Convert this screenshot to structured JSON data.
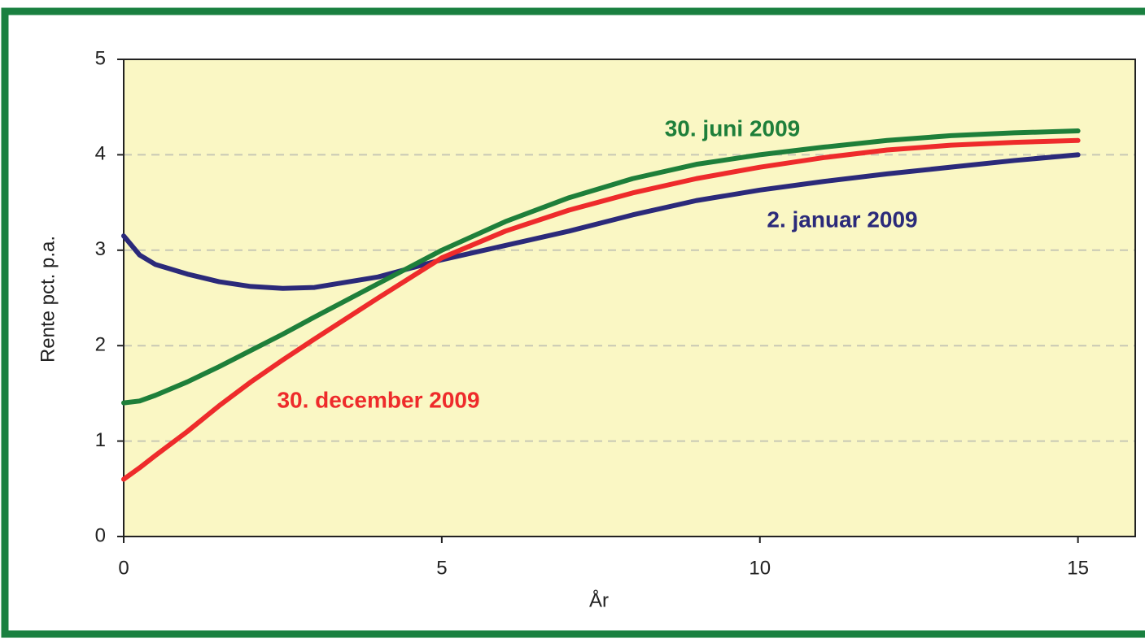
{
  "chart_data": {
    "type": "line",
    "x_label": "År",
    "y_label": "Rente pct. p.a.",
    "x": [
      0,
      0.25,
      0.5,
      1,
      1.5,
      2,
      2.5,
      3,
      4,
      5,
      6,
      7,
      8,
      9,
      10,
      11,
      12,
      13,
      14,
      15
    ],
    "series": [
      {
        "name": "2. januar 2009",
        "color": "#2b2a7a",
        "values": [
          3.15,
          2.95,
          2.85,
          2.75,
          2.67,
          2.62,
          2.6,
          2.61,
          2.72,
          2.9,
          3.05,
          3.2,
          3.37,
          3.52,
          3.63,
          3.72,
          3.8,
          3.87,
          3.94,
          4.0
        ]
      },
      {
        "name": "30. juni 2009",
        "color": "#1e7f3a",
        "values": [
          1.4,
          1.42,
          1.48,
          1.62,
          1.78,
          1.95,
          2.12,
          2.3,
          2.65,
          3.0,
          3.3,
          3.55,
          3.75,
          3.9,
          4.0,
          4.08,
          4.15,
          4.2,
          4.23,
          4.25
        ]
      },
      {
        "name": "30. december 2009",
        "color": "#ee2b2b",
        "values": [
          0.6,
          0.72,
          0.85,
          1.1,
          1.37,
          1.62,
          1.85,
          2.07,
          2.5,
          2.92,
          3.2,
          3.42,
          3.6,
          3.75,
          3.87,
          3.97,
          4.05,
          4.1,
          4.13,
          4.15
        ]
      }
    ],
    "xlim": [
      0,
      15.9
    ],
    "ylim": [
      0,
      5
    ],
    "xticks": [
      0,
      5,
      10,
      15
    ],
    "yticks": [
      0,
      1,
      2,
      3,
      4,
      5
    ],
    "grid": true,
    "plot_background": "#faf7c4",
    "frame_color": "#1a8040"
  }
}
